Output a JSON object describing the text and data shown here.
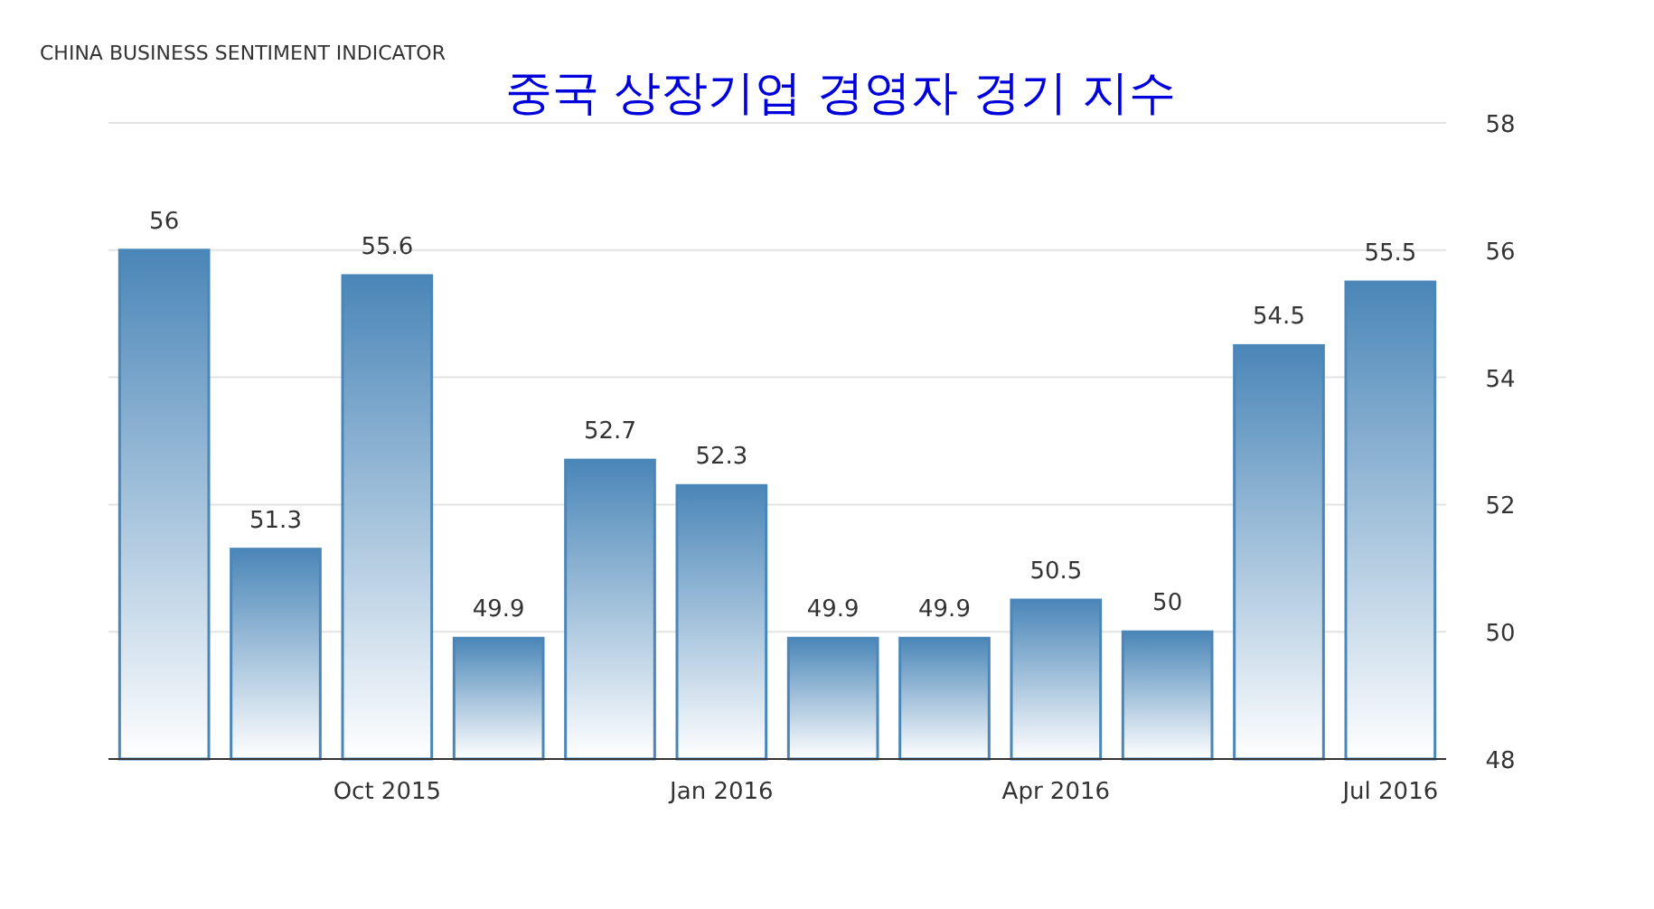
{
  "chart_data": {
    "type": "bar",
    "title": "CHINA BUSINESS SENTIMENT INDICATOR",
    "subtitle": "중국 상장기업 경영자 경기 지수",
    "categories": [
      null,
      null,
      "Oct 2015",
      null,
      null,
      "Jan 2016",
      null,
      null,
      "Apr 2016",
      null,
      null,
      "Jul 2016"
    ],
    "values": [
      56,
      51.3,
      55.6,
      49.9,
      52.7,
      52.3,
      49.9,
      49.9,
      50.5,
      50,
      54.5,
      55.5
    ],
    "color": "#4a86b8",
    "ylim": [
      48,
      58
    ],
    "yticks": [
      48,
      50,
      52,
      54,
      56,
      58
    ],
    "grid": "y",
    "data_labels": true
  }
}
